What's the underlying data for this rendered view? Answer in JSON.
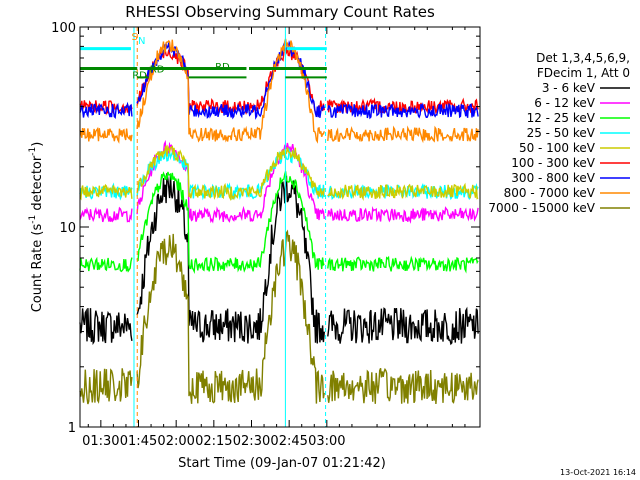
{
  "chart_data": {
    "type": "line",
    "title": "RHESSI Observing Summary Count Rates",
    "xlabel": "Start Time (09-Jan-07 01:21:42)",
    "ylabel": "Count Rate (s",
    "ylabel_sup": "-1",
    "ylabel_tail": " detector",
    "ylabel_end": ")",
    "x_range_minutes": [
      21.7,
      181.0
    ],
    "x_ticks": [
      {
        "label": "01:30",
        "min": 30
      },
      {
        "label": "01:45",
        "min": 45
      },
      {
        "label": "02:00",
        "min": 60
      },
      {
        "label": "02:15",
        "min": 75
      },
      {
        "label": "02:30",
        "min": 90
      },
      {
        "label": "02:45",
        "min": 105
      },
      {
        "label": "03:00",
        "min": 120
      }
    ],
    "y_scale": "log",
    "y_range": [
      1,
      100
    ],
    "y_ticks": [
      {
        "label": "1",
        "value": 1
      },
      {
        "label": "10",
        "value": 10
      },
      {
        "label": "100",
        "value": 100
      }
    ],
    "legend_header": [
      "Det 1,3,4,5,6,9,",
      "FDecim 1, Att 0"
    ],
    "legend_placement": "right",
    "series": [
      {
        "name": "3 - 6 keV",
        "color": "#000000",
        "base": 3.2,
        "peak": 16
      },
      {
        "name": "6 - 12 keV",
        "color": "#ff00ff",
        "base": 11.5,
        "peak": 25
      },
      {
        "name": "12 - 25 keV",
        "color": "#00ff00",
        "base": 6.5,
        "peak": 18
      },
      {
        "name": "25 - 50 keV",
        "color": "#00ffff",
        "base": 15,
        "peak": 23
      },
      {
        "name": "50 - 100 keV",
        "color": "#cccc00",
        "base": 15,
        "peak": 24
      },
      {
        "name": "100 - 300 keV",
        "color": "#ff0000",
        "base": 40,
        "peak": 75
      },
      {
        "name": "300 - 800 keV",
        "color": "#0000ff",
        "base": 38,
        "peak": 78
      },
      {
        "name": "800 - 7000 keV",
        "color": "#ff8800",
        "base": 29,
        "peak": 82
      },
      {
        "name": "7000 - 15000 keV",
        "color": "#808000",
        "base": 1.6,
        "peak": 8
      }
    ],
    "flags": [
      {
        "label": "S",
        "color": "#ff8800"
      },
      {
        "label": "N",
        "color": "#00ffff"
      },
      {
        "label": "RD",
        "color": "#008800"
      },
      {
        "label": "RD",
        "color": "#008800"
      },
      {
        "label": "RD",
        "color": "#008800"
      }
    ],
    "footer_date": "13-Oct-2021 16:14"
  }
}
